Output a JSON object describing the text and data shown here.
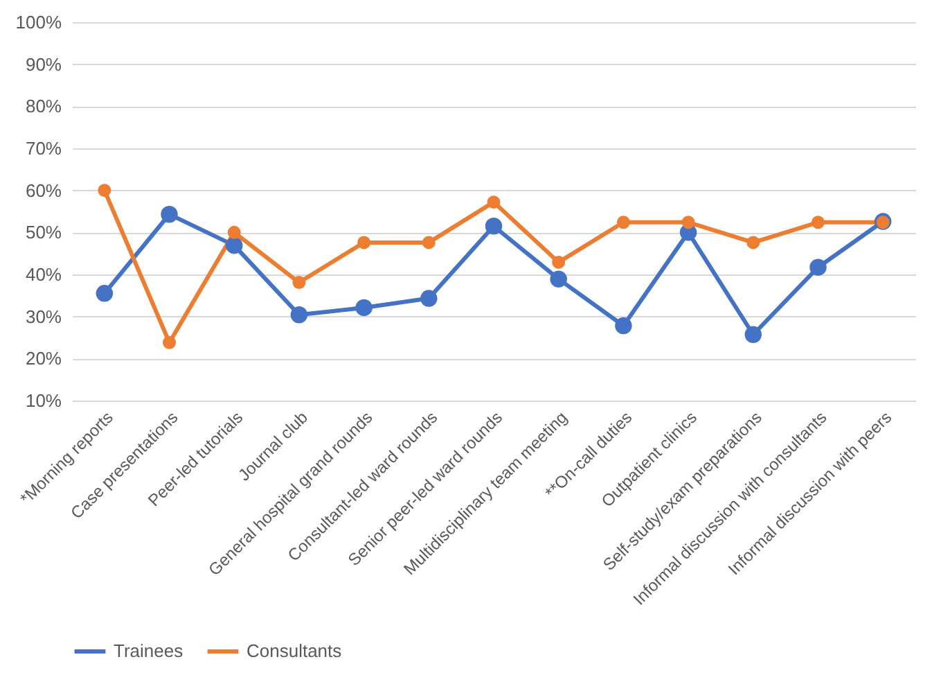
{
  "chart_data": {
    "type": "line",
    "categories": [
      "*Morning reports",
      "Case presentations",
      "Peer-led tutorials",
      "Journal club",
      "General hospital grand rounds",
      "Consultant-led ward rounds",
      "Senior peer-led ward rounds",
      "Multidisciplinary team meeting",
      "**On-call duties",
      "Outpatient clinics",
      "Self-study/exam preparations",
      "Informal discussion with consultants",
      "Informal discussion with peers"
    ],
    "series": [
      {
        "name": "Trainees",
        "color": "#4472c4",
        "values": [
          35.5,
          54.3,
          46.9,
          30.4,
          32.1,
          34.3,
          51.5,
          38.9,
          27.8,
          50.0,
          25.7,
          41.7,
          52.6
        ]
      },
      {
        "name": "Consultants",
        "color": "#ed7d31",
        "values": [
          60.0,
          23.8,
          50.0,
          38.1,
          47.6,
          47.6,
          57.2,
          42.9,
          52.4,
          52.4,
          47.6,
          52.4,
          52.4
        ]
      }
    ],
    "ylim": [
      10,
      100
    ],
    "yticks": [
      {
        "value": 10,
        "label": "10%"
      },
      {
        "value": 20,
        "label": "20%"
      },
      {
        "value": 30,
        "label": "30%"
      },
      {
        "value": 40,
        "label": "40%"
      },
      {
        "value": 50,
        "label": "50%"
      },
      {
        "value": 60,
        "label": "60%"
      },
      {
        "value": 70,
        "label": "70%"
      },
      {
        "value": 80,
        "label": "80%"
      },
      {
        "value": 90,
        "label": "90%"
      },
      {
        "value": 100,
        "label": "100%"
      }
    ],
    "grid": "y",
    "legend": "bottom",
    "marker": "circle",
    "line_style": "solid"
  }
}
